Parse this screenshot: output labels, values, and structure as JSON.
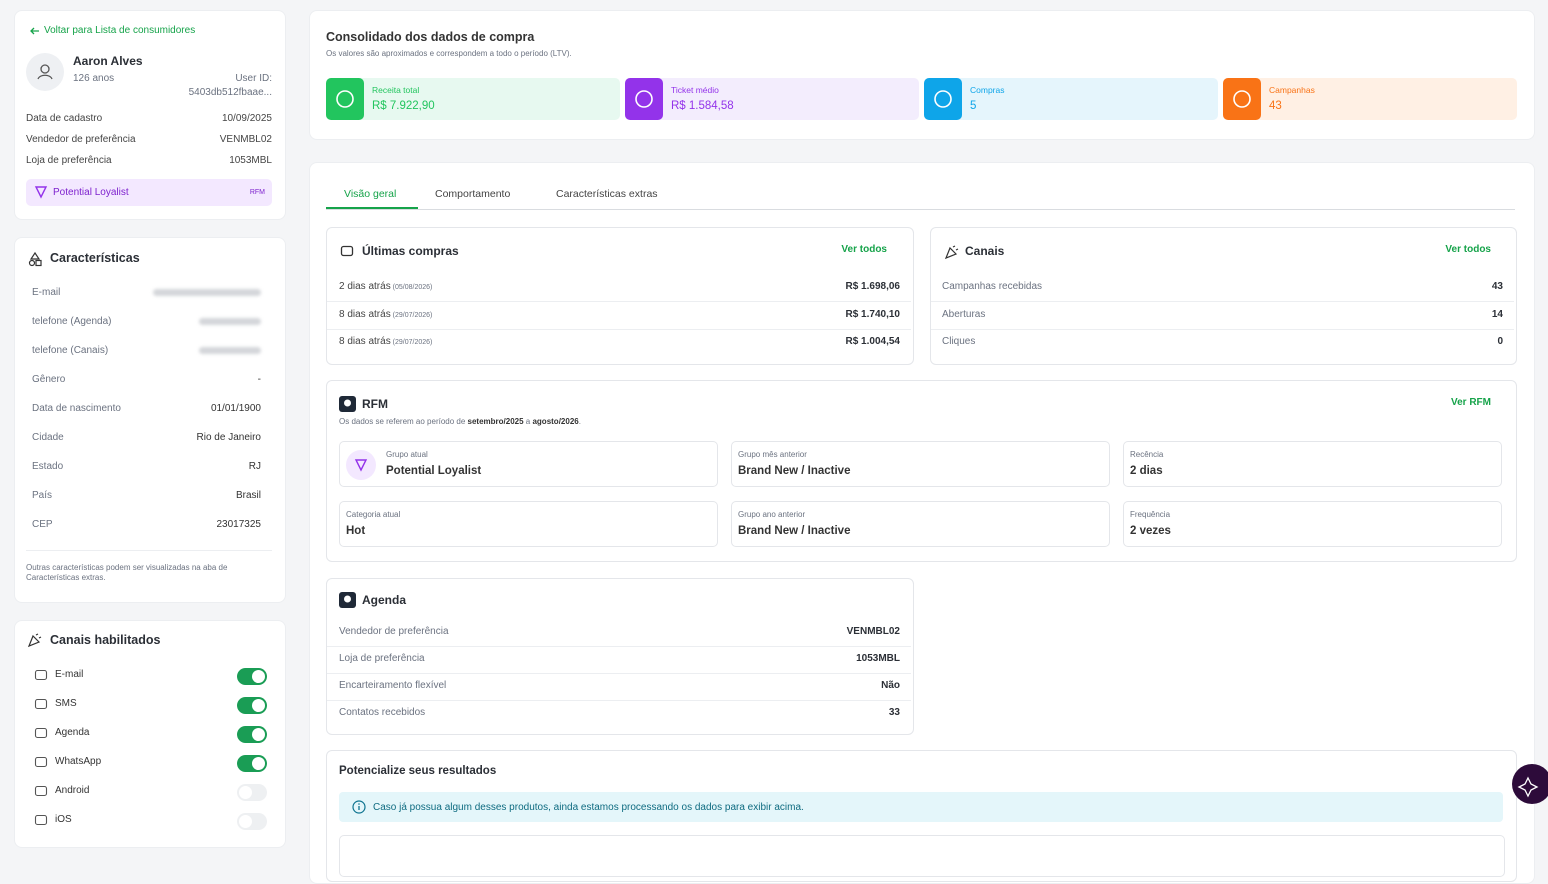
{
  "sidebar": {
    "back_link": "Voltar para Lista de consumidores",
    "profile": {
      "name": "Aaron Alves",
      "age": "126 anos",
      "user_id_label": "User ID:",
      "user_id": "5403db512fbaae..."
    },
    "info": [
      {
        "label": "Data de cadastro",
        "value": "10/09/2025"
      },
      {
        "label": "Vendedor de preferência",
        "value": "VENMBL02"
      },
      {
        "label": "Loja de preferência",
        "value": "1053MBL"
      }
    ],
    "badge": {
      "label": "Potential Loyalist",
      "tag": "RFM"
    },
    "characteristics": {
      "title": "Características",
      "rows": [
        {
          "label": "E-mail",
          "blurred": true
        },
        {
          "label": "telefone (Agenda)",
          "blurred": true
        },
        {
          "label": "telefone (Canais)",
          "blurred": true
        },
        {
          "label": "Gênero",
          "value": "-"
        },
        {
          "label": "Data de nascimento",
          "value": "01/01/1900"
        },
        {
          "label": "Cidade",
          "value": "Rio de Janeiro"
        },
        {
          "label": "Estado",
          "value": "RJ"
        },
        {
          "label": "País",
          "value": "Brasil"
        },
        {
          "label": "CEP",
          "value": "23017325"
        }
      ],
      "note": "Outras características podem ser visualizadas na aba de Características extras."
    },
    "channels": {
      "title": "Canais habilitados",
      "items": [
        {
          "label": "E-mail",
          "enabled": true
        },
        {
          "label": "SMS",
          "enabled": true
        },
        {
          "label": "Agenda",
          "enabled": true
        },
        {
          "label": "WhatsApp",
          "enabled": true
        },
        {
          "label": "Android",
          "enabled": false
        },
        {
          "label": "iOS",
          "enabled": false
        }
      ]
    }
  },
  "summary": {
    "title": "Consolidado dos dados de compra",
    "subtitle": "Os valores são aproximados e correspondem a todo o período (LTV).",
    "cards": [
      {
        "label": "Receita total",
        "value": "R$ 7.922,90",
        "color": "#22c55e",
        "bg": "#e7f9f0"
      },
      {
        "label": "Ticket médio",
        "value": "R$ 1.584,58",
        "color": "#9333ea",
        "bg": "#f3edfd"
      },
      {
        "label": "Compras",
        "value": 5,
        "color": "#0ea5e9",
        "bg": "#e5f5fc"
      },
      {
        "label": "Campanhas",
        "value": 43,
        "color": "#f97316",
        "bg": "#fff0e4"
      }
    ]
  },
  "tabs": {
    "items": [
      "Visão geral",
      "Comportamento",
      "Características extras"
    ],
    "active": 0
  },
  "purchases": {
    "title": "Últimas compras",
    "link": "Ver todos",
    "rows": [
      {
        "when": "2 dias atrás",
        "date": "(05/08/2026)",
        "value": "R$ 1.698,06"
      },
      {
        "when": "8 dias atrás",
        "date": "(29/07/2026)",
        "value": "R$ 1.740,10"
      },
      {
        "when": "8 dias atrás",
        "date": "(29/07/2026)",
        "value": "R$ 1.004,54"
      }
    ]
  },
  "canais": {
    "title": "Canais",
    "link": "Ver todos",
    "rows": [
      {
        "label": "Campanhas recebidas",
        "value": 43
      },
      {
        "label": "Aberturas",
        "value": 14
      },
      {
        "label": "Cliques",
        "value": 0
      }
    ]
  },
  "rfm": {
    "title": "RFM",
    "link": "Ver RFM",
    "note": [
      "Os dados se referem ao período de ",
      "setembro/2025",
      " a ",
      "agosto/2026",
      "."
    ],
    "cells": [
      {
        "label": "Grupo atual",
        "value": "Potential Loyalist"
      },
      {
        "label": "Grupo mês anterior",
        "value": "Brand New / Inactive"
      },
      {
        "label": "Recência",
        "value": "2 dias"
      },
      {
        "label": "Categoria atual",
        "value": "Hot"
      },
      {
        "label": "Grupo ano anterior",
        "value": "Brand New / Inactive"
      },
      {
        "label": "Frequência",
        "value": "2 vezes"
      }
    ]
  },
  "agenda": {
    "title": "Agenda",
    "rows": [
      {
        "label": "Vendedor de preferência",
        "value": "VENMBL02"
      },
      {
        "label": "Loja de preferência",
        "value": "1053MBL"
      },
      {
        "label": "Encarteiramento flexível",
        "value": "Não"
      },
      {
        "label": "Contatos recebidos",
        "value": 33
      }
    ]
  },
  "boost": {
    "title": "Potencialize seus resultados",
    "info": "Caso já possua algum desses produtos, ainda estamos processando os dados para exibir acima."
  }
}
